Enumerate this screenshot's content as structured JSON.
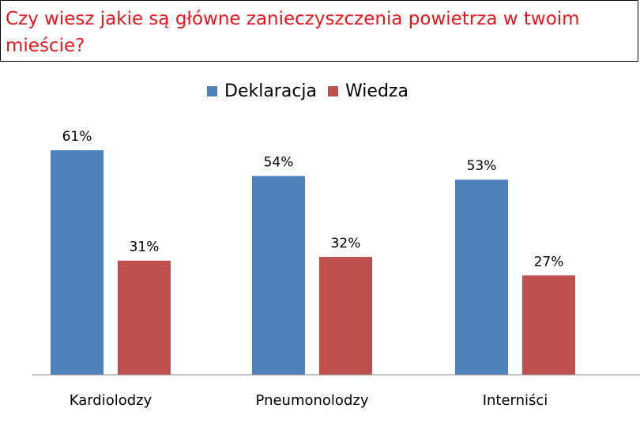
{
  "chart_data": {
    "type": "bar",
    "title": "Czy wiesz jakie są główne zanieczyszczenia powietrza w twoim mieście?",
    "categories": [
      "Kardiolodzy",
      "Pneumonolodzy",
      "Interniści"
    ],
    "series": [
      {
        "name": "Deklaracja",
        "values": [
          61,
          54,
          53
        ],
        "labels": [
          "61%",
          "54%",
          "53%"
        ],
        "color": "#4f81bd"
      },
      {
        "name": "Wiedza",
        "values": [
          31,
          32,
          27
        ],
        "labels": [
          "31%",
          "32%",
          "27%"
        ],
        "color": "#c0504d"
      }
    ],
    "ylim": [
      0,
      61
    ],
    "grid": false,
    "legend_position": "top-center",
    "title_color": "#e8161b"
  }
}
